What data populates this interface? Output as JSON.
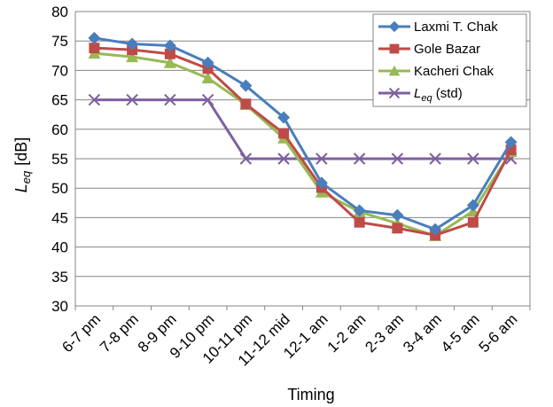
{
  "chart_data": {
    "type": "line",
    "xlabel": "Timing",
    "ylabel": {
      "main": "L",
      "sub": "eq",
      "unit": "[dB]"
    },
    "ylim": [
      30,
      80
    ],
    "ytick_step": 5,
    "grid": true,
    "legend_position": "top-right",
    "categories": [
      "6-7 pm",
      "7-8 pm",
      "8-9 pm",
      "9-10 pm",
      "10-11 pm",
      "11-12 mid",
      "12-1 am",
      "1-2 am",
      "2-3 am",
      "3-4 am",
      "4-5 am",
      "5-6 am"
    ],
    "series": [
      {
        "name": "Laxmi T. Chak",
        "color": "#4a7ebb",
        "marker": "diamond",
        "values": [
          75.5,
          74.5,
          74.2,
          71.3,
          67.4,
          62.0,
          50.9,
          46.2,
          45.4,
          43.0,
          47.1,
          57.8
        ]
      },
      {
        "name": "Gole Bazar",
        "color": "#be4b48",
        "marker": "square",
        "values": [
          73.8,
          73.5,
          72.8,
          70.3,
          64.3,
          59.3,
          50.1,
          44.2,
          43.2,
          42.0,
          44.2,
          56.5
        ]
      },
      {
        "name": "Kacheri Chak",
        "color": "#98b954",
        "marker": "triangle",
        "values": [
          72.9,
          72.3,
          71.3,
          68.7,
          64.2,
          58.5,
          49.3,
          46.0,
          44.0,
          41.9,
          46.1,
          56.2
        ]
      },
      {
        "name": "Leq (std)",
        "legend": {
          "main": "L",
          "sub": "eq",
          "rest": "  (std)"
        },
        "color": "#7d60a0",
        "marker": "x",
        "values": [
          65,
          65,
          65,
          65,
          55,
          55,
          55,
          55,
          55,
          55,
          55,
          55
        ]
      }
    ]
  }
}
